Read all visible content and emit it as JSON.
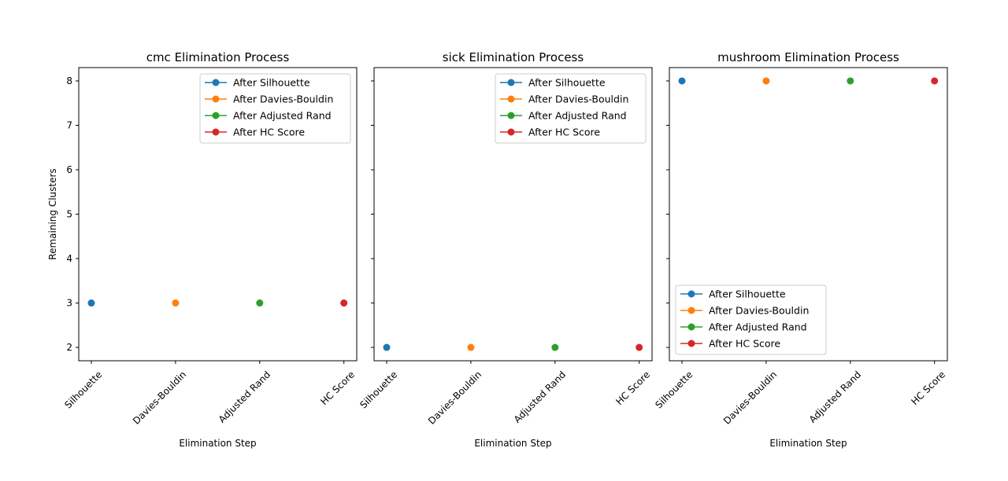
{
  "chart_data": [
    {
      "type": "line",
      "title": "cmc Elimination Process",
      "xlabel": "Elimination Step",
      "ylabel": "Remaining Clusters",
      "categories": [
        "Silhouette",
        "Davies-Bouldin",
        "Adjusted Rand",
        "HC Score"
      ],
      "ylim": [
        1.7,
        8.3
      ],
      "yticks": [
        "2",
        "3",
        "4",
        "5",
        "6",
        "7",
        "8"
      ],
      "legend_position": "upper-right",
      "series": [
        {
          "name": "After Silhouette",
          "color": "#1f77b4",
          "points": [
            {
              "category": "Silhouette",
              "value": 3
            }
          ]
        },
        {
          "name": "After Davies-Bouldin",
          "color": "#ff7f0e",
          "points": [
            {
              "category": "Davies-Bouldin",
              "value": 3
            }
          ]
        },
        {
          "name": "After Adjusted Rand",
          "color": "#2ca02c",
          "points": [
            {
              "category": "Adjusted Rand",
              "value": 3
            }
          ]
        },
        {
          "name": "After HC Score",
          "color": "#d62728",
          "points": [
            {
              "category": "HC Score",
              "value": 3
            }
          ]
        }
      ]
    },
    {
      "type": "line",
      "title": "sick Elimination Process",
      "xlabel": "Elimination Step",
      "ylabel": "",
      "categories": [
        "Silhouette",
        "Davies-Bouldin",
        "Adjusted Rand",
        "HC Score"
      ],
      "ylim": [
        1.7,
        8.3
      ],
      "yticks": [
        "2",
        "3",
        "4",
        "5",
        "6",
        "7",
        "8"
      ],
      "legend_position": "upper-right",
      "series": [
        {
          "name": "After Silhouette",
          "color": "#1f77b4",
          "points": [
            {
              "category": "Silhouette",
              "value": 2
            }
          ]
        },
        {
          "name": "After Davies-Bouldin",
          "color": "#ff7f0e",
          "points": [
            {
              "category": "Davies-Bouldin",
              "value": 2
            }
          ]
        },
        {
          "name": "After Adjusted Rand",
          "color": "#2ca02c",
          "points": [
            {
              "category": "Adjusted Rand",
              "value": 2
            }
          ]
        },
        {
          "name": "After HC Score",
          "color": "#d62728",
          "points": [
            {
              "category": "HC Score",
              "value": 2
            }
          ]
        }
      ]
    },
    {
      "type": "line",
      "title": "mushroom Elimination Process",
      "xlabel": "Elimination Step",
      "ylabel": "",
      "categories": [
        "Silhouette",
        "Davies-Bouldin",
        "Adjusted Rand",
        "HC Score"
      ],
      "ylim": [
        1.7,
        8.3
      ],
      "yticks": [
        "2",
        "3",
        "4",
        "5",
        "6",
        "7",
        "8"
      ],
      "legend_position": "lower-left",
      "series": [
        {
          "name": "After Silhouette",
          "color": "#1f77b4",
          "points": [
            {
              "category": "Silhouette",
              "value": 8
            }
          ]
        },
        {
          "name": "After Davies-Bouldin",
          "color": "#ff7f0e",
          "points": [
            {
              "category": "Davies-Bouldin",
              "value": 8
            }
          ]
        },
        {
          "name": "After Adjusted Rand",
          "color": "#2ca02c",
          "points": [
            {
              "category": "Adjusted Rand",
              "value": 8
            }
          ]
        },
        {
          "name": "After HC Score",
          "color": "#d62728",
          "points": [
            {
              "category": "HC Score",
              "value": 8
            }
          ]
        }
      ]
    }
  ]
}
